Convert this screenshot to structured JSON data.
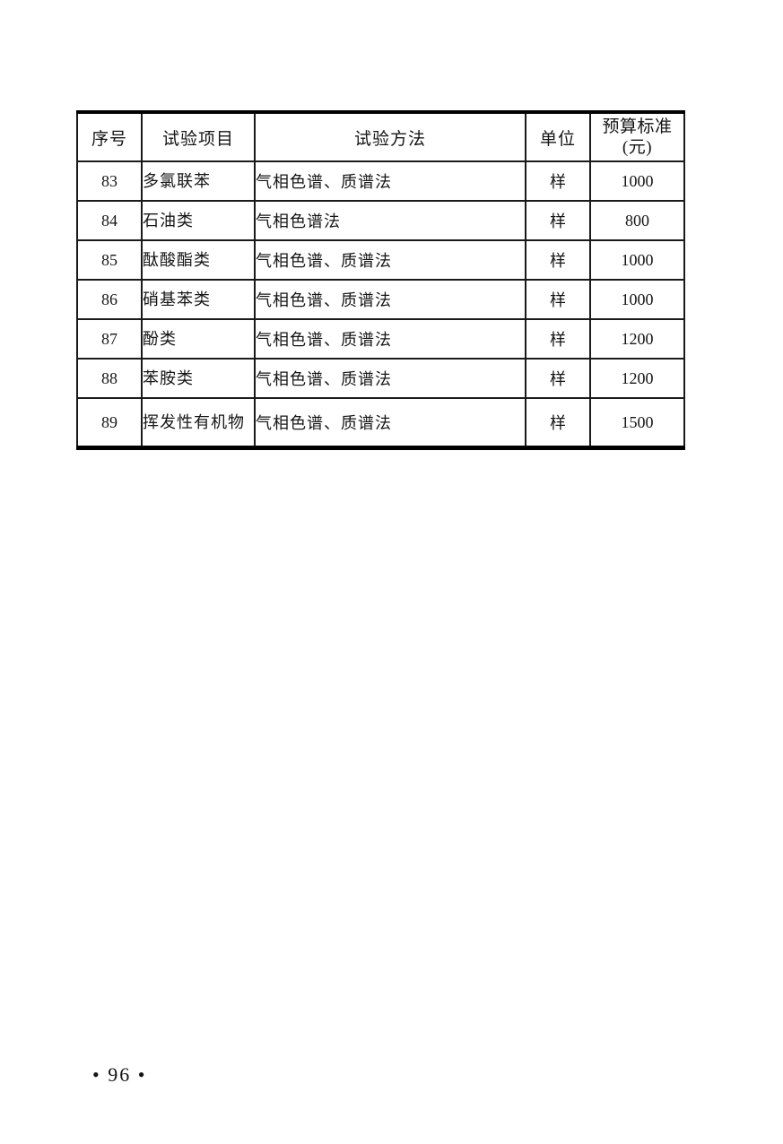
{
  "table": {
    "headers": {
      "no": "序号",
      "item": "试验项目",
      "method": "试验方法",
      "unit": "单位",
      "budget_line1": "预算标准",
      "budget_line2": "(元)"
    },
    "rows": [
      {
        "no": "83",
        "item": "多氯联苯",
        "method": "气相色谱、质谱法",
        "unit": "样",
        "budget": "1000"
      },
      {
        "no": "84",
        "item": "石油类",
        "method": "气相色谱法",
        "unit": "样",
        "budget": "800"
      },
      {
        "no": "85",
        "item": "酞酸酯类",
        "method": "气相色谱、质谱法",
        "unit": "样",
        "budget": "1000"
      },
      {
        "no": "86",
        "item": "硝基苯类",
        "method": "气相色谱、质谱法",
        "unit": "样",
        "budget": "1000"
      },
      {
        "no": "87",
        "item": "酚类",
        "method": "气相色谱、质谱法",
        "unit": "样",
        "budget": "1200"
      },
      {
        "no": "88",
        "item": "苯胺类",
        "method": "气相色谱、质谱法",
        "unit": "样",
        "budget": "1200"
      },
      {
        "no": "89",
        "item": "挥发性有机物",
        "method": "气相色谱、质谱法",
        "unit": "样",
        "budget": "1500"
      }
    ]
  },
  "footer": {
    "page_number": "• 96 •"
  }
}
